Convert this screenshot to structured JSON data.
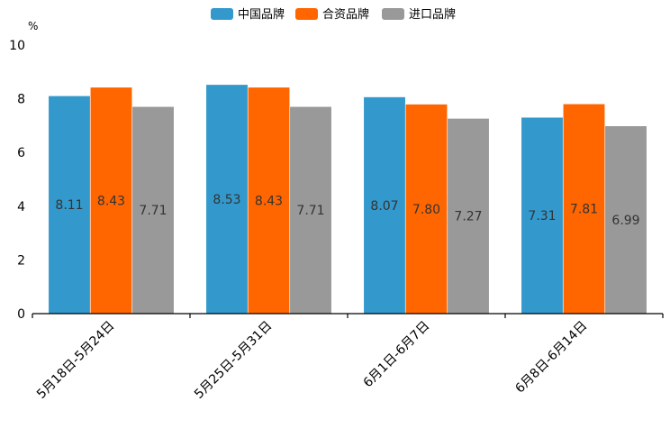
{
  "chart_data": {
    "type": "bar",
    "title": "",
    "unit_label": "%",
    "xlabel": "",
    "ylabel": "",
    "ylim": [
      0,
      10
    ],
    "yticks": [
      "0",
      "2",
      "4",
      "6",
      "8",
      "10"
    ],
    "grid": false,
    "legend_position": "top-center",
    "categories": [
      "5月18日-5月24日",
      "5月25日-5月31日",
      "6月1日-6月7日",
      "6月8日-6月14日"
    ],
    "series": [
      {
        "name": "中国品牌",
        "color": "#3399CC",
        "values": [
          8.11,
          8.53,
          8.07,
          7.31
        ],
        "labels": [
          "8.11",
          "8.53",
          "8.07",
          "7.31"
        ]
      },
      {
        "name": "合资品牌",
        "color": "#FF6600",
        "values": [
          8.43,
          8.43,
          7.8,
          7.81
        ],
        "labels": [
          "8.43",
          "8.43",
          "7.80",
          "7.81"
        ]
      },
      {
        "name": "进口品牌",
        "color": "#999999",
        "values": [
          7.71,
          7.71,
          7.27,
          6.99
        ],
        "labels": [
          "7.71",
          "7.71",
          "7.27",
          "6.99"
        ]
      }
    ]
  }
}
